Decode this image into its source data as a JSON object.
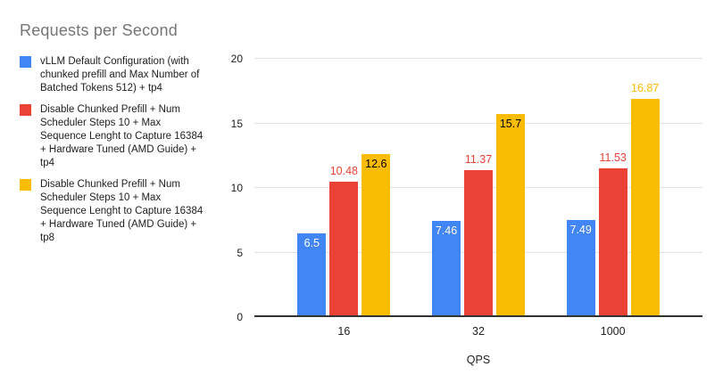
{
  "chart_data": {
    "type": "bar",
    "title": "Requests per Second",
    "xlabel": "QPS",
    "ylabel": "",
    "categories": [
      "16",
      "32",
      "1000"
    ],
    "series": [
      {
        "name": "vLLM Default Configuration (with chunked prefill and Max Number of Batched Tokens 512) + tp4",
        "short": "vllm-default-tp4",
        "color": "#4285F4",
        "values": [
          6.5,
          7.46,
          7.49
        ],
        "label_placement": [
          "inside",
          "inside",
          "inside"
        ],
        "label_color_inside": "#ffffff"
      },
      {
        "name": "Disable Chunked Prefill + Num Scheduler Steps 10 + Max Sequence Lenght to Capture 16384 + Hardware Tuned (AMD Guide) + tp4",
        "short": "tuned-tp4",
        "color": "#EA4335",
        "values": [
          10.48,
          11.37,
          11.53
        ],
        "label_placement": [
          "outside",
          "outside",
          "outside"
        ],
        "label_color_inside": "#ffffff"
      },
      {
        "name": "Disable Chunked Prefill + Num Scheduler Steps 10 + Max Sequence Lenght to Capture 16384 + Hardware Tuned (AMD Guide) + tp8",
        "short": "tuned-tp8",
        "color": "#FBBC04",
        "values": [
          12.6,
          15.7,
          16.87
        ],
        "label_placement": [
          "inside",
          "inside",
          "outside"
        ],
        "label_color_inside": "#000000"
      }
    ],
    "yticks": [
      0,
      5,
      10,
      15,
      20
    ],
    "ylim": [
      0,
      20
    ],
    "grid": true,
    "legend_position": "left"
  },
  "colors": {
    "background": "#ffffff",
    "title_text": "#757575",
    "legend_text": "#212121",
    "axis_text": "#222222",
    "gridline": "#e2e2e2",
    "axis_line": "#333333"
  }
}
